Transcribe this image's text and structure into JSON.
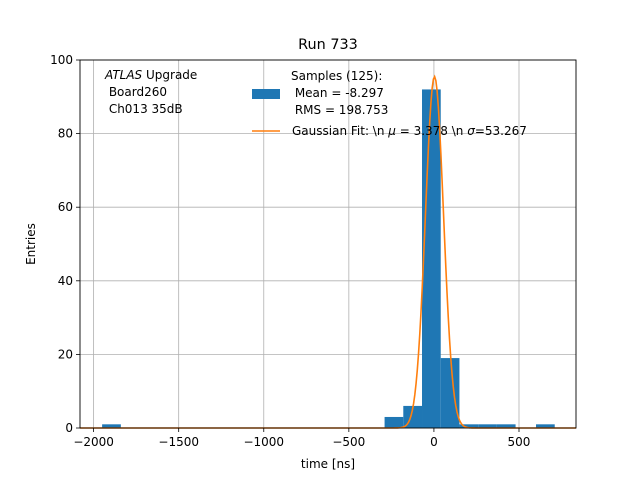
{
  "chart_data": {
    "type": "bar",
    "title": "Run 733",
    "xlabel": "time [ns]",
    "ylabel": "Entries",
    "xlim": [
      -2080,
      835
    ],
    "ylim": [
      0,
      100
    ],
    "xticks": [
      -2000,
      -1500,
      -1000,
      -500,
      0,
      500
    ],
    "xtick_labels": [
      "−2000",
      "−1500",
      "−1000",
      "−500",
      "0",
      "500"
    ],
    "yticks": [
      0,
      20,
      40,
      60,
      80,
      100
    ],
    "ytick_labels": [
      "0",
      "20",
      "40",
      "60",
      "80",
      "100"
    ],
    "grid": true,
    "colors": {
      "histogram": "#1f77b4",
      "fit": "#ff7f0e",
      "grid": "#b0b0b0"
    },
    "bins": [
      {
        "x0": -1950,
        "x1": -1840,
        "count": 1
      },
      {
        "x0": -290,
        "x1": -180,
        "count": 3
      },
      {
        "x0": -180,
        "x1": -70,
        "count": 6
      },
      {
        "x0": -70,
        "x1": 40,
        "count": 92
      },
      {
        "x0": 40,
        "x1": 150,
        "count": 19
      },
      {
        "x0": 150,
        "x1": 260,
        "count": 1
      },
      {
        "x0": 260,
        "x1": 370,
        "count": 1
      },
      {
        "x0": 370,
        "x1": 480,
        "count": 1
      },
      {
        "x0": 600,
        "x1": 710,
        "count": 1
      }
    ],
    "fit": {
      "mu": 3.378,
      "sigma": 53.267,
      "amplitude": 95.5
    },
    "annotation": {
      "line1_prefix": "ATLAS",
      "line1_suffix": " Upgrade",
      "line2": " Board260",
      "line3": " Ch013 35dB"
    },
    "legend": {
      "placement": "upper-center",
      "series": [
        {
          "name": "Samples (125):",
          "line2": " Mean = -8.297",
          "line3": " RMS = 198.753"
        },
        {
          "name_part1": "Gaussian Fit: \\n ",
          "mu_symbol": "μ",
          "name_part2": " = 3.378 \\n ",
          "sigma_symbol": "σ",
          "name_part3": "=53.267"
        }
      ]
    }
  }
}
